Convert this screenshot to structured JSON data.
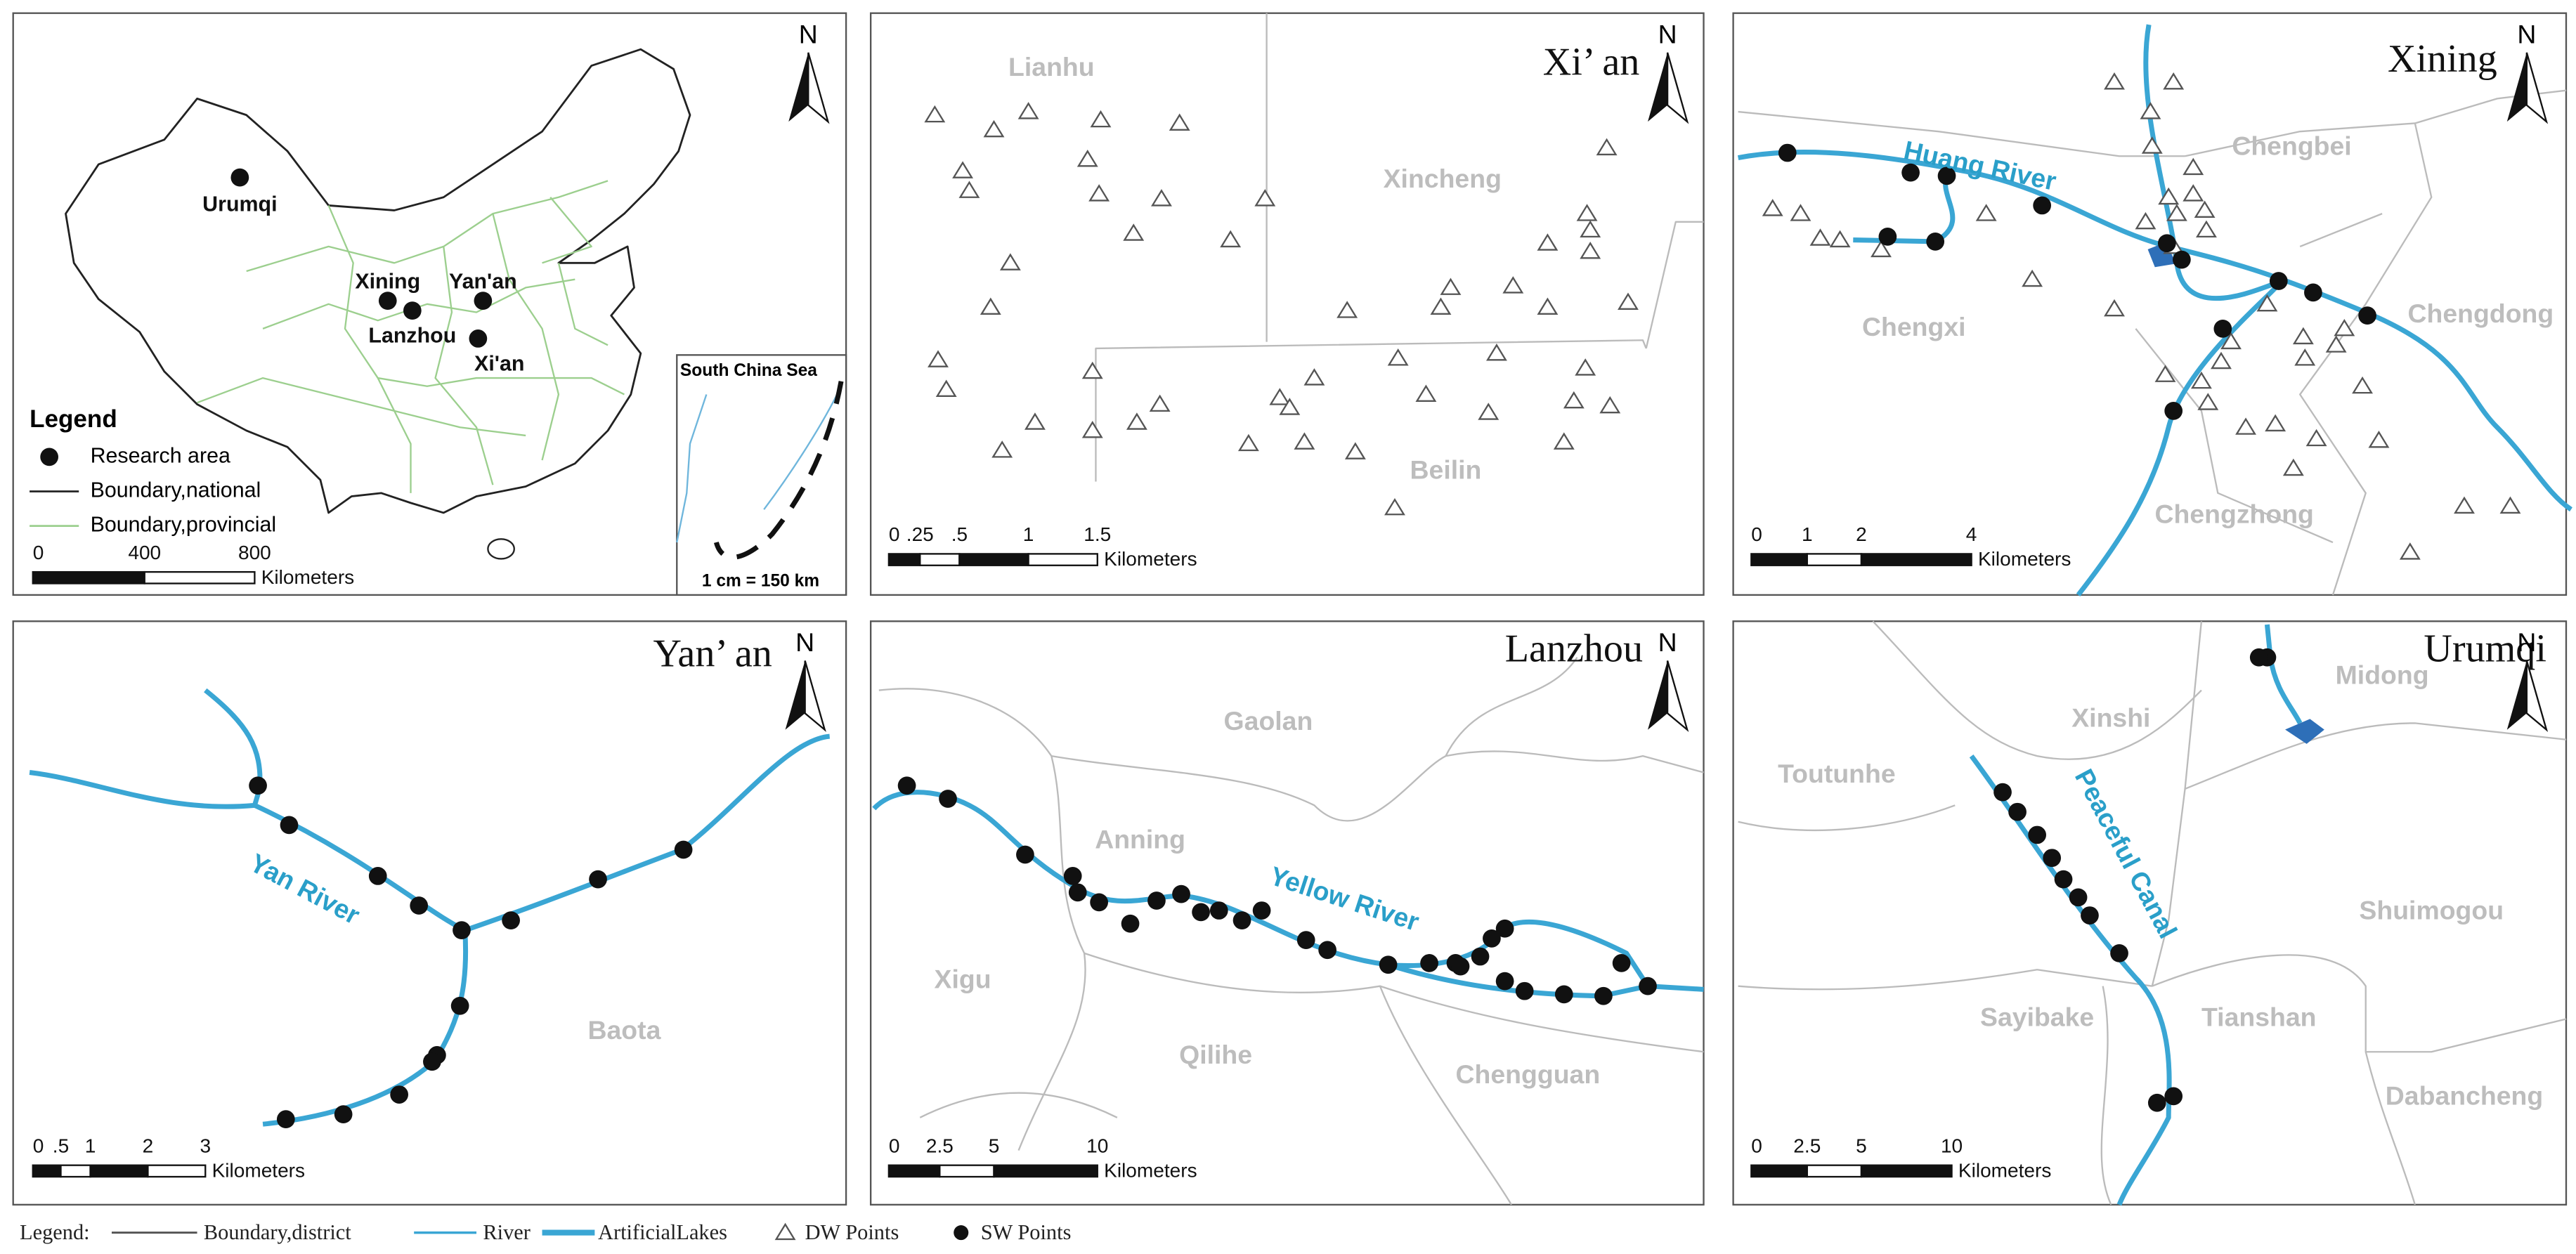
{
  "china_map": {
    "labels": [
      "Urumqi",
      "Xining",
      "Lanzhou",
      "Yan'an",
      "Xi'an"
    ],
    "legend": {
      "title": "Legend",
      "items": [
        "Research area",
        "Boundary,national",
        "Boundary,provincial"
      ]
    },
    "scale": {
      "ticks": [
        "0",
        "400",
        "800"
      ],
      "unit": "Kilometers"
    },
    "inset": {
      "title": "South China Sea",
      "scale": "1 cm = 150 km"
    },
    "north": "N"
  },
  "maps": [
    {
      "title": "Xi’ an",
      "districts": [
        "Lianhu",
        "Xincheng",
        "Beilin"
      ],
      "scale": {
        "ticks": [
          "0",
          ".25",
          ".5",
          "1",
          "1.5"
        ],
        "unit": "Kilometers"
      },
      "north": "N"
    },
    {
      "title": "Xining",
      "districts": [
        "Chengbei",
        "Chengxi",
        "Chengdong",
        "Chengzhong"
      ],
      "rivers": [
        "Huang River"
      ],
      "scale": {
        "ticks": [
          "0",
          "1",
          "2",
          "4"
        ],
        "unit": "Kilometers"
      },
      "north": "N"
    },
    {
      "title": "Yan’ an",
      "districts": [
        "Baota"
      ],
      "rivers": [
        "Yan River"
      ],
      "scale": {
        "ticks": [
          "0",
          ".5",
          "1",
          "2",
          "3"
        ],
        "unit": "Kilometers"
      },
      "north": "N"
    },
    {
      "title": "Lanzhou",
      "districts": [
        "Gaolan",
        "Anning",
        "Xigu",
        "Qilihe",
        "Chengguan"
      ],
      "rivers": [
        "Yellow River"
      ],
      "scale": {
        "ticks": [
          "0",
          "2.5",
          "5",
          "10"
        ],
        "unit": "Kilometers"
      },
      "north": "N"
    },
    {
      "title": "Urumqi",
      "districts": [
        "Xinshi",
        "Midong",
        "Toutunhe",
        "Shuimogou",
        "Sayibake",
        "Tianshan",
        "Dabancheng"
      ],
      "rivers": [
        "Peaceful Canal"
      ],
      "scale": {
        "ticks": [
          "0",
          "2.5",
          "5",
          "10"
        ],
        "unit": "Kilometers"
      },
      "north": "N"
    }
  ],
  "legend": {
    "title": "Legend:",
    "items": [
      "Boundary,district",
      "River",
      "ArtificialLakes",
      "DW Points",
      "SW Points"
    ]
  }
}
